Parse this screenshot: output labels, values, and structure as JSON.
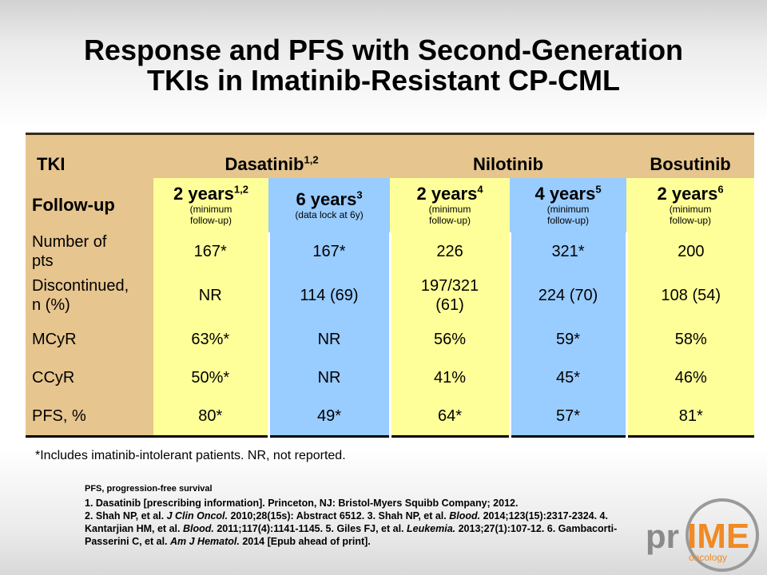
{
  "title_line1": "Response and PFS with Second-Generation",
  "title_line2": "TKIs in Imatinib-Resistant CP-CML",
  "table": {
    "header": {
      "tki": "TKI",
      "dasatinib": "Dasatinib",
      "dasatinib_sup": "1,2",
      "nilotinib": "Nilotinib",
      "bosutinib": "Bosutinib"
    },
    "followup": {
      "label": "Follow-up",
      "cols": [
        {
          "years": "2 years",
          "sup": "1,2",
          "note1": "(minimum",
          "note2": "follow-up)"
        },
        {
          "years": "6 years",
          "sup": "3",
          "note1": "(data lock at 6y)",
          "note2": ""
        },
        {
          "years": "2 years",
          "sup": "4",
          "note1": "(minimum",
          "note2": "follow-up)"
        },
        {
          "years": "4 years",
          "sup": "5",
          "note1": "(minimum",
          "note2": "follow-up)"
        },
        {
          "years": "2 years",
          "sup": "6",
          "note1": "(minimum",
          "note2": "follow-up)"
        }
      ]
    },
    "rows": [
      {
        "label1": "Number of",
        "label2": "pts",
        "values": [
          "167*",
          "167*",
          "226",
          "321*",
          "200"
        ]
      },
      {
        "label1": "Discontinued,",
        "label2": "n (%)",
        "values": [
          "NR",
          "114 (69)",
          "197/321\n(61)",
          "224 (70)",
          "108 (54)"
        ]
      },
      {
        "label1": "MCyR",
        "label2": "",
        "values": [
          "63%*",
          "NR",
          "56%",
          "59*",
          "58%"
        ]
      },
      {
        "label1": "CCyR",
        "label2": "",
        "values": [
          "50%*",
          "NR",
          "41%",
          "45*",
          "46%"
        ]
      },
      {
        "label1": "PFS, %",
        "label2": "",
        "values": [
          "80*",
          "49*",
          "64*",
          "57*",
          "81*"
        ]
      }
    ]
  },
  "footnote": "*Includes imatinib-intolerant patients. NR, not reported.",
  "refs": {
    "abbreviation": "PFS, progression-free survival",
    "r1": "1. Dasatinib [prescribing information]. Princeton, NJ: Bristol-Myers Squibb Company; 2012.",
    "r2a": "2. Shah NP, et al. ",
    "r2j": "J Clin Oncol.",
    "r2b": " 2010;28(15s): Abstract 6512. 3. Shah NP, et al. ",
    "r3j": "Blood.",
    "r3b": " 2014;123(15):2317-2324. 4. Kantarjian HM, et al. ",
    "r4j": "Blood.",
    "r4b": " 2011;117(4):1141-1145. 5. Giles FJ, et al. ",
    "r5j": "Leukemia.",
    "r5b": " 2013;27(1):107-12. 6. Gambacorti-Passerini C, et al. ",
    "r6j": "Am J Hematol.",
    "r6b": " 2014 [Epub ahead of print]."
  },
  "logo": {
    "text_pr": "pr",
    "text_ime": "IME",
    "text_oncology": "oncology",
    "color_grey": "#8a8a8a",
    "color_orange": "#f08a24"
  }
}
